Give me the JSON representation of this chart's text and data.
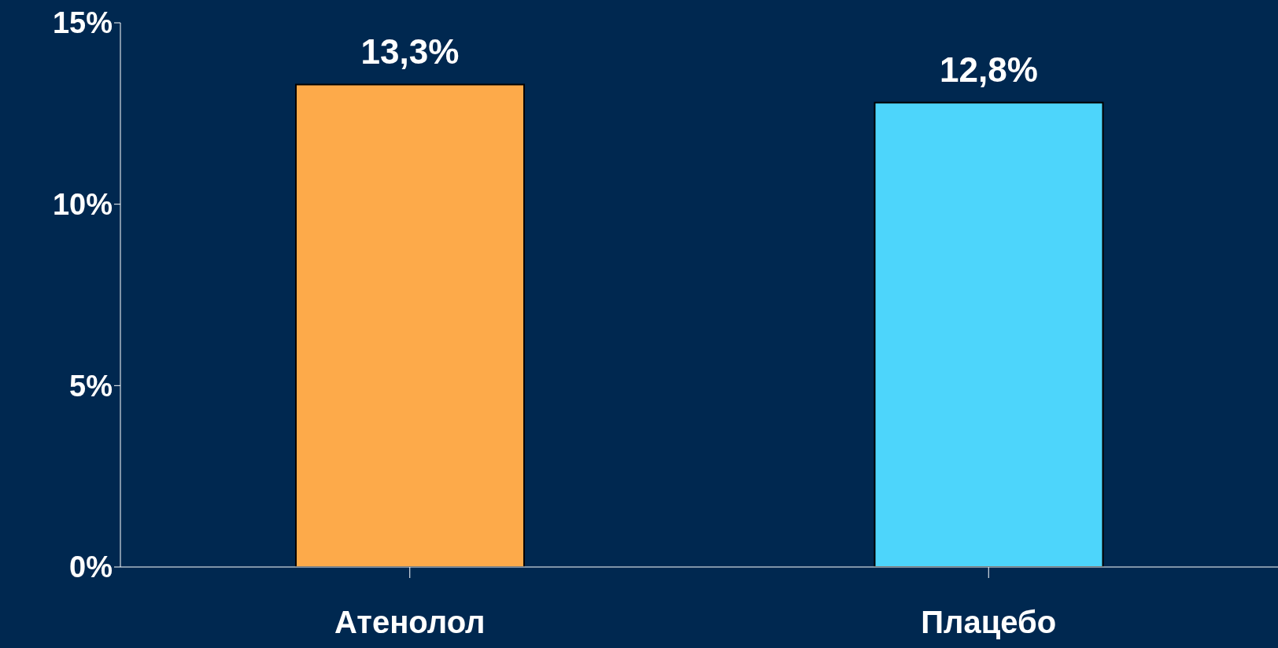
{
  "chart_data": {
    "type": "bar",
    "categories": [
      "Атенолол",
      "Плацебо"
    ],
    "values": [
      13.3,
      12.8
    ],
    "colors": [
      "#fdaa4a",
      "#4dd5fb"
    ],
    "value_labels": [
      "13,3%",
      "12,8%"
    ],
    "ylim": [
      0,
      15
    ],
    "yticks": [
      {
        "value": 0,
        "label": "0%"
      },
      {
        "value": 5,
        "label": "5%"
      },
      {
        "value": 10,
        "label": "10%"
      },
      {
        "value": 15,
        "label": "15%"
      }
    ],
    "grid": false,
    "legend": false
  }
}
